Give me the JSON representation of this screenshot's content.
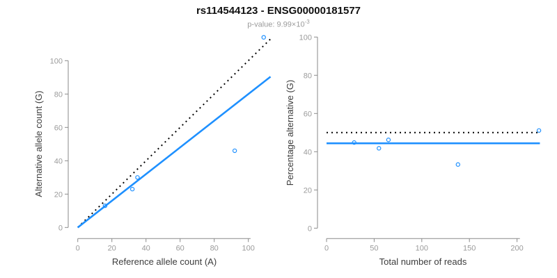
{
  "header": {
    "title": "rs114544123 - ENSG00000181577",
    "pvalue_label": "p-value: 9.99×10",
    "pvalue_exponent": "-3"
  },
  "colors": {
    "fit_line_blue": "#1E90FF",
    "point_blue": "#1E90FF",
    "identity_black": "#000000",
    "axis_gray": "#8a8a8a",
    "tick_label_gray": "#9b9b9b",
    "axis_label_dark": "#3c3c3c",
    "title_black": "#111111",
    "background": "#ffffff"
  },
  "chart_data": [
    {
      "type": "scatter",
      "name": "allele-counts-panel",
      "xlabel": "Reference allele count (A)",
      "ylabel": "Alternative allele count (G)",
      "xlim": [
        0,
        113
      ],
      "ylim": [
        0,
        114
      ],
      "xticks": [
        0,
        20,
        40,
        60,
        80,
        100
      ],
      "yticks": [
        0,
        20,
        40,
        60,
        80,
        100
      ],
      "grid": false,
      "legend": "none",
      "points": [
        [
          16,
          13
        ],
        [
          32,
          23
        ],
        [
          35,
          30
        ],
        [
          92,
          46
        ],
        [
          109,
          114
        ]
      ],
      "lines": [
        {
          "name": "identity-line",
          "style": "dotted",
          "color": "#000000",
          "from": [
            0,
            0
          ],
          "to": [
            113,
            113
          ]
        },
        {
          "name": "fit-line",
          "style": "solid",
          "color": "#1E90FF",
          "from": [
            0,
            0
          ],
          "to": [
            113,
            90.4
          ]
        }
      ]
    },
    {
      "type": "scatter",
      "name": "percentage-panel",
      "xlabel": "Total number of reads",
      "ylabel": "Percentage alternative (G)",
      "xlim": [
        0,
        228
      ],
      "ylim": [
        0,
        100
      ],
      "xticks": [
        0,
        50,
        100,
        150,
        200
      ],
      "yticks": [
        0,
        20,
        40,
        60,
        80,
        100
      ],
      "grid": false,
      "legend": "none",
      "points": [
        [
          29,
          44.8
        ],
        [
          55,
          41.8
        ],
        [
          65,
          46.2
        ],
        [
          138,
          33.3
        ],
        [
          223,
          51.1
        ]
      ],
      "lines": [
        {
          "name": "null-50pct-line",
          "style": "dotted",
          "color": "#000000",
          "from": [
            0,
            50
          ],
          "to": [
            223,
            50
          ]
        },
        {
          "name": "fit-line",
          "style": "solid",
          "color": "#1E90FF",
          "from": [
            0,
            44.4
          ],
          "to": [
            224,
            44.4
          ]
        }
      ]
    }
  ]
}
